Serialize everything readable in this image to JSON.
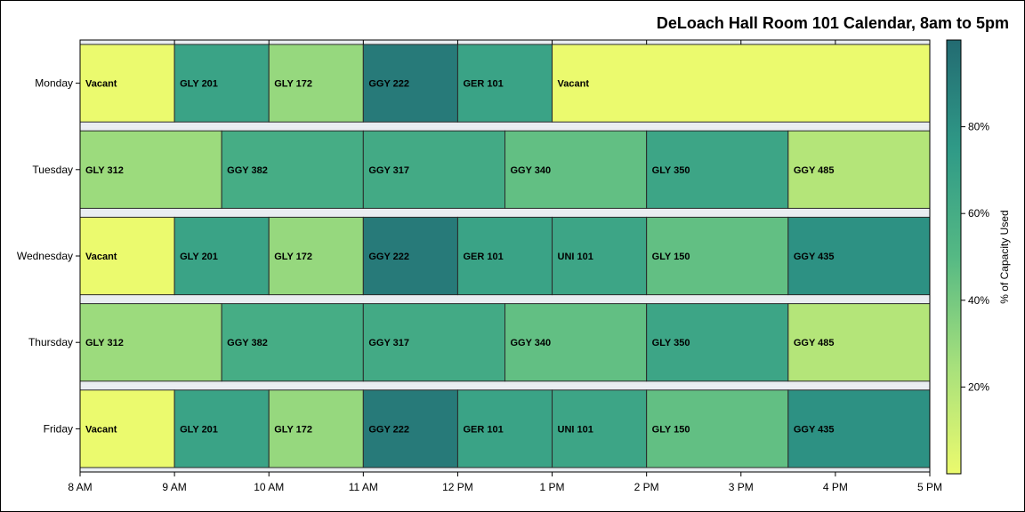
{
  "chart_data": {
    "type": "bar",
    "orientation": "horizontal-timeline",
    "title": "DeLoach Hall Room 101 Calendar, 8am to 5pm",
    "x_ticks": [
      "8 AM",
      "9 AM",
      "10 AM",
      "11 AM",
      "12 PM",
      "1 PM",
      "2 PM",
      "3 PM",
      "4 PM",
      "5 PM"
    ],
    "xlim": [
      8,
      17
    ],
    "days": [
      "Monday",
      "Tuesday",
      "Wednesday",
      "Thursday",
      "Friday"
    ],
    "events": [
      {
        "day": "Monday",
        "label": "Vacant",
        "start": 8,
        "end": 9,
        "capacity": 0
      },
      {
        "day": "Monday",
        "label": "GLY 201",
        "start": 9,
        "end": 10,
        "capacity": 68
      },
      {
        "day": "Monday",
        "label": "GLY 172",
        "start": 10,
        "end": 11,
        "capacity": 30
      },
      {
        "day": "Monday",
        "label": "GGY 222",
        "start": 11,
        "end": 12,
        "capacity": 92
      },
      {
        "day": "Monday",
        "label": "GER 101",
        "start": 12,
        "end": 13,
        "capacity": 68
      },
      {
        "day": "Monday",
        "label": "Vacant",
        "start": 13,
        "end": 17,
        "capacity": 0
      },
      {
        "day": "Tuesday",
        "label": "GLY 312",
        "start": 8,
        "end": 9.5,
        "capacity": 28
      },
      {
        "day": "Tuesday",
        "label": "GGY 382",
        "start": 9.5,
        "end": 11,
        "capacity": 60
      },
      {
        "day": "Tuesday",
        "label": "GGY 317",
        "start": 11,
        "end": 12.5,
        "capacity": 62
      },
      {
        "day": "Tuesday",
        "label": "GGY 340",
        "start": 12.5,
        "end": 14,
        "capacity": 46
      },
      {
        "day": "Tuesday",
        "label": "GLY 350",
        "start": 14,
        "end": 15.5,
        "capacity": 66
      },
      {
        "day": "Tuesday",
        "label": "GGY 485",
        "start": 15.5,
        "end": 17,
        "capacity": 20
      },
      {
        "day": "Wednesday",
        "label": "Vacant",
        "start": 8,
        "end": 9,
        "capacity": 0
      },
      {
        "day": "Wednesday",
        "label": "GLY 201",
        "start": 9,
        "end": 10,
        "capacity": 68
      },
      {
        "day": "Wednesday",
        "label": "GLY 172",
        "start": 10,
        "end": 11,
        "capacity": 30
      },
      {
        "day": "Wednesday",
        "label": "GGY 222",
        "start": 11,
        "end": 12,
        "capacity": 92
      },
      {
        "day": "Wednesday",
        "label": "GER 101",
        "start": 12,
        "end": 13,
        "capacity": 68
      },
      {
        "day": "Wednesday",
        "label": "UNI 101",
        "start": 13,
        "end": 14,
        "capacity": 66
      },
      {
        "day": "Wednesday",
        "label": "GLY 150",
        "start": 14,
        "end": 15.5,
        "capacity": 46
      },
      {
        "day": "Wednesday",
        "label": "GGY 435",
        "start": 15.5,
        "end": 17,
        "capacity": 80
      },
      {
        "day": "Thursday",
        "label": "GLY 312",
        "start": 8,
        "end": 9.5,
        "capacity": 28
      },
      {
        "day": "Thursday",
        "label": "GGY 382",
        "start": 9.5,
        "end": 11,
        "capacity": 60
      },
      {
        "day": "Thursday",
        "label": "GGY 317",
        "start": 11,
        "end": 12.5,
        "capacity": 62
      },
      {
        "day": "Thursday",
        "label": "GGY 340",
        "start": 12.5,
        "end": 14,
        "capacity": 46
      },
      {
        "day": "Thursday",
        "label": "GLY 350",
        "start": 14,
        "end": 15.5,
        "capacity": 66
      },
      {
        "day": "Thursday",
        "label": "GGY 485",
        "start": 15.5,
        "end": 17,
        "capacity": 20
      },
      {
        "day": "Friday",
        "label": "Vacant",
        "start": 8,
        "end": 9,
        "capacity": 0
      },
      {
        "day": "Friday",
        "label": "GLY 201",
        "start": 9,
        "end": 10,
        "capacity": 68
      },
      {
        "day": "Friday",
        "label": "GLY 172",
        "start": 10,
        "end": 11,
        "capacity": 30
      },
      {
        "day": "Friday",
        "label": "GGY 222",
        "start": 11,
        "end": 12,
        "capacity": 92
      },
      {
        "day": "Friday",
        "label": "GER 101",
        "start": 12,
        "end": 13,
        "capacity": 68
      },
      {
        "day": "Friday",
        "label": "UNI 101",
        "start": 13,
        "end": 14,
        "capacity": 66
      },
      {
        "day": "Friday",
        "label": "GLY 150",
        "start": 14,
        "end": 15.5,
        "capacity": 46
      },
      {
        "day": "Friday",
        "label": "GGY 435",
        "start": 15.5,
        "end": 17,
        "capacity": 80
      }
    ],
    "colorbar": {
      "label": "% of Capacity Used",
      "ticks": [
        {
          "value": 20,
          "label": "20%"
        },
        {
          "value": 40,
          "label": "40%"
        },
        {
          "value": 60,
          "label": "60%"
        },
        {
          "value": 80,
          "label": "80%"
        }
      ],
      "range": [
        0,
        100
      ],
      "color_stops": [
        "#ebfa6e",
        "#a6e07c",
        "#55b984",
        "#2f9a87",
        "#236b72"
      ]
    },
    "grid": false,
    "legend_position": "right"
  }
}
